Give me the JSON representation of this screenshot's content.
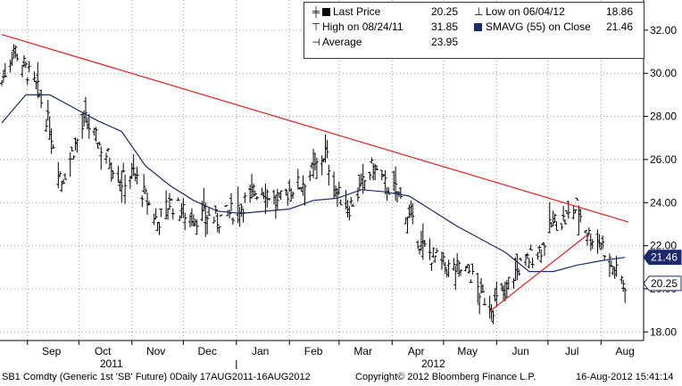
{
  "legend": {
    "last_price_label": "Last Price",
    "last_price_value": "20.25",
    "low_label": "Low on 06/04/12",
    "low_value": "18.86",
    "high_label": "High on 08/24/11",
    "high_value": "31.85",
    "sma_label": "SMAVG (55) on Close",
    "sma_value": "21.46",
    "average_label": "Average",
    "average_value": "23.95"
  },
  "footer": {
    "left": "SB1 Comdty (Generic 1st 'SB' Future) 0Daily 17AUG2011-16AUG2012",
    "center": "Copyright© 2012 Bloomberg Finance L.P.",
    "right": "16-Aug-2012 15:41:14"
  },
  "colors": {
    "price": "#000000",
    "sma": "#1c2a6b",
    "trendline": "#e02020",
    "grid": "#9a9a9a"
  },
  "chart_data": {
    "type": "line",
    "x_tick_labels": [
      "Sep",
      "Oct",
      "Nov",
      "Dec",
      "Jan",
      "Feb",
      "Mar",
      "Apr",
      "May",
      "Jun",
      "Jul",
      "Aug"
    ],
    "year_labels": [
      "2011",
      "2012"
    ],
    "y_tick_labels": [
      "18.00",
      "20.00",
      "22.00",
      "24.00",
      "26.00",
      "28.00",
      "30.00",
      "32.00"
    ],
    "ylim": [
      17.6,
      33.4
    ],
    "grid": true,
    "value_tags": [
      {
        "label": "21.46",
        "value": 21.46,
        "style": "dark"
      },
      {
        "label": "20.25",
        "value": 20.25,
        "style": "light"
      }
    ],
    "series": [
      {
        "style": "ohlc-bars",
        "x": [
          "2011-08-17",
          "2011-08-24",
          "2011-08-31",
          "2011-09-07",
          "2011-09-14",
          "2011-09-21",
          "2011-09-28",
          "2011-10-05",
          "2011-10-12",
          "2011-10-19",
          "2011-10-26",
          "2011-11-02",
          "2011-11-09",
          "2011-11-16",
          "2011-11-23",
          "2011-11-30",
          "2011-12-07",
          "2011-12-14",
          "2011-12-21",
          "2011-12-28",
          "2012-01-04",
          "2012-01-11",
          "2012-01-18",
          "2012-01-25",
          "2012-02-01",
          "2012-02-08",
          "2012-02-15",
          "2012-02-22",
          "2012-02-29",
          "2012-03-07",
          "2012-03-14",
          "2012-03-21",
          "2012-03-28",
          "2012-04-04",
          "2012-04-11",
          "2012-04-18",
          "2012-04-25",
          "2012-05-02",
          "2012-05-09",
          "2012-05-16",
          "2012-05-23",
          "2012-05-30",
          "2012-06-06",
          "2012-06-13",
          "2012-06-20",
          "2012-06-27",
          "2012-07-04",
          "2012-07-11",
          "2012-07-18",
          "2012-07-25",
          "2012-08-01",
          "2012-08-08",
          "2012-08-15"
        ],
        "values": [
          29.6,
          31.2,
          30.2,
          29.2,
          27.5,
          25.0,
          26.5,
          27.8,
          26.8,
          26.0,
          25.0,
          25.4,
          24.2,
          23.1,
          24.0,
          23.6,
          23.3,
          23.4,
          23.2,
          23.5,
          23.9,
          24.5,
          24.6,
          23.9,
          24.6,
          24.9,
          25.5,
          26.3,
          24.4,
          23.8,
          24.7,
          25.7,
          24.8,
          24.5,
          23.3,
          22.0,
          21.5,
          21.0,
          20.9,
          20.8,
          19.7,
          19.2,
          20.0,
          20.9,
          21.4,
          21.9,
          23.1,
          23.2,
          23.8,
          22.5,
          22.2,
          20.9,
          20.25
        ]
      },
      {
        "name": "SMAVG (55) on Close",
        "x": [
          "2011-08-17",
          "2011-08-31",
          "2011-09-14",
          "2011-09-28",
          "2011-10-12",
          "2011-10-26",
          "2011-11-09",
          "2011-11-23",
          "2011-12-07",
          "2011-12-21",
          "2012-01-04",
          "2012-01-18",
          "2012-02-01",
          "2012-02-15",
          "2012-02-29",
          "2012-03-14",
          "2012-03-28",
          "2012-04-11",
          "2012-04-25",
          "2012-05-09",
          "2012-05-23",
          "2012-06-06",
          "2012-06-20",
          "2012-07-04",
          "2012-07-18",
          "2012-08-01",
          "2012-08-15"
        ],
        "values": [
          27.7,
          29.0,
          29.0,
          28.4,
          27.8,
          27.3,
          25.7,
          24.8,
          24.1,
          23.6,
          23.5,
          23.6,
          23.7,
          24.1,
          24.2,
          24.6,
          24.5,
          24.3,
          23.6,
          22.9,
          22.3,
          21.7,
          20.8,
          20.8,
          21.1,
          21.3,
          21.46
        ]
      },
      {
        "name": "Trend line (down)",
        "x": [
          "2011-08-17",
          "2012-08-17"
        ],
        "values": [
          31.8,
          23.1
        ]
      },
      {
        "name": "Trend line (up)",
        "x": [
          "2012-05-28",
          "2012-07-24"
        ],
        "values": [
          18.95,
          22.5
        ]
      }
    ]
  }
}
